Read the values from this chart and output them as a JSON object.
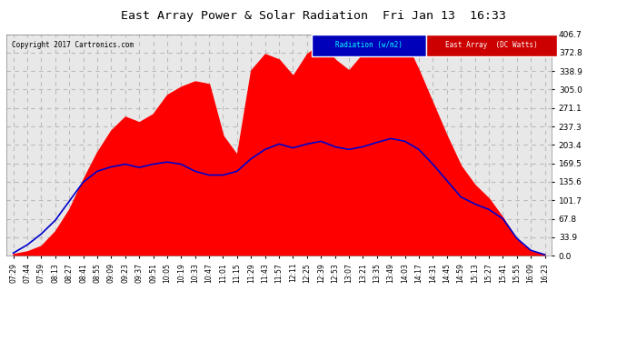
{
  "title": "East Array Power & Solar Radiation  Fri Jan 13  16:33",
  "copyright": "Copyright 2017 Cartronics.com",
  "yticks": [
    0.0,
    33.9,
    67.8,
    101.7,
    135.6,
    169.5,
    203.4,
    237.3,
    271.1,
    305.0,
    338.9,
    372.8,
    406.7
  ],
  "ylim": [
    0,
    406.7
  ],
  "background_color": "#ffffff",
  "plot_bg_color": "#e8e8e8",
  "grid_color": "#bbbbbb",
  "fill_color": "#ff0000",
  "line_color": "#0000cc",
  "legend_labels": [
    "Radiation (w/m2)",
    "East Array  (DC Watts)"
  ],
  "legend_colors_bg": [
    "#0000bb",
    "#cc0000"
  ],
  "legend_text_colors": [
    "#00ffff",
    "#ffffff"
  ],
  "x_labels": [
    "07:29",
    "07:44",
    "07:59",
    "08:13",
    "08:27",
    "08:41",
    "08:55",
    "09:09",
    "09:23",
    "09:37",
    "09:51",
    "10:05",
    "10:19",
    "10:33",
    "10:47",
    "11:01",
    "11:15",
    "11:29",
    "11:43",
    "11:57",
    "12:11",
    "12:25",
    "12:39",
    "12:53",
    "13:07",
    "13:21",
    "13:35",
    "13:49",
    "14:03",
    "14:17",
    "14:31",
    "14:45",
    "14:59",
    "15:13",
    "15:27",
    "15:41",
    "15:55",
    "16:09",
    "16:23"
  ],
  "east_array_values": [
    3,
    8,
    18,
    45,
    85,
    140,
    190,
    230,
    255,
    245,
    260,
    295,
    310,
    320,
    315,
    220,
    185,
    340,
    370,
    360,
    330,
    370,
    390,
    360,
    340,
    370,
    380,
    406,
    395,
    340,
    280,
    220,
    165,
    130,
    105,
    70,
    30,
    8,
    2
  ],
  "radiation_values": [
    5,
    20,
    40,
    65,
    100,
    135,
    155,
    163,
    168,
    162,
    168,
    172,
    168,
    155,
    148,
    148,
    155,
    178,
    195,
    205,
    198,
    205,
    210,
    200,
    195,
    200,
    208,
    215,
    210,
    195,
    168,
    138,
    108,
    95,
    85,
    68,
    32,
    10,
    2
  ]
}
